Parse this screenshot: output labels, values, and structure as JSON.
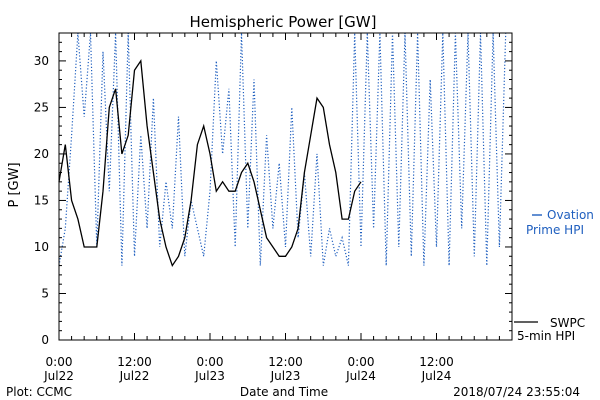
{
  "chart_data": {
    "type": "line",
    "title": "Hemispheric Power [GW]",
    "xlabel": "Date and Time",
    "ylabel": "P [GW]",
    "ylim": [
      0,
      33
    ],
    "yticks": [
      0,
      5,
      10,
      15,
      20,
      25,
      30
    ],
    "xlim": [
      "2018-07-22 00:00",
      "2018-07-25 00:00"
    ],
    "xticks": [
      {
        "t": "2018-07-22 00:00",
        "line1": "0:00",
        "line2": "Jul22"
      },
      {
        "t": "2018-07-22 12:00",
        "line1": "12:00",
        "line2": "Jul22"
      },
      {
        "t": "2018-07-23 00:00",
        "line1": "0:00",
        "line2": "Jul23"
      },
      {
        "t": "2018-07-23 12:00",
        "line1": "12:00",
        "line2": "Jul23"
      },
      {
        "t": "2018-07-24 00:00",
        "line1": "0:00",
        "line2": "Jul24"
      },
      {
        "t": "2018-07-24 12:00",
        "line1": "12:00",
        "line2": "Jul24"
      }
    ],
    "series": [
      {
        "name": "Ovation Prime HPI",
        "style": "dotted",
        "color": "#1f5fbf",
        "x": [
          "2018-07-22 00:00",
          "2018-07-22 01:00",
          "2018-07-22 02:00",
          "2018-07-22 03:00",
          "2018-07-22 04:00",
          "2018-07-22 05:00",
          "2018-07-22 06:00",
          "2018-07-22 07:00",
          "2018-07-22 08:00",
          "2018-07-22 09:00",
          "2018-07-22 10:00",
          "2018-07-22 11:00",
          "2018-07-22 12:00",
          "2018-07-22 13:00",
          "2018-07-22 14:00",
          "2018-07-22 15:00",
          "2018-07-22 16:00",
          "2018-07-22 17:00",
          "2018-07-22 18:00",
          "2018-07-22 19:00",
          "2018-07-22 20:00",
          "2018-07-22 21:00",
          "2018-07-22 22:00",
          "2018-07-22 23:00",
          "2018-07-23 00:00",
          "2018-07-23 01:00",
          "2018-07-23 02:00",
          "2018-07-23 03:00",
          "2018-07-23 04:00",
          "2018-07-23 05:00",
          "2018-07-23 06:00",
          "2018-07-23 07:00",
          "2018-07-23 08:00",
          "2018-07-23 09:00",
          "2018-07-23 10:00",
          "2018-07-23 11:00",
          "2018-07-23 12:00",
          "2018-07-23 13:00",
          "2018-07-23 14:00",
          "2018-07-23 15:00",
          "2018-07-23 16:00",
          "2018-07-23 17:00",
          "2018-07-23 18:00",
          "2018-07-23 19:00",
          "2018-07-23 20:00",
          "2018-07-23 21:00",
          "2018-07-23 22:00",
          "2018-07-23 23:00",
          "2018-07-24 00:00",
          "2018-07-24 01:00",
          "2018-07-24 02:00",
          "2018-07-24 03:00",
          "2018-07-24 04:00",
          "2018-07-24 05:00",
          "2018-07-24 06:00",
          "2018-07-24 07:00",
          "2018-07-24 08:00",
          "2018-07-24 09:00",
          "2018-07-24 10:00",
          "2018-07-24 11:00",
          "2018-07-24 12:00",
          "2018-07-24 13:00",
          "2018-07-24 14:00",
          "2018-07-24 15:00",
          "2018-07-24 16:00",
          "2018-07-24 17:00",
          "2018-07-24 18:00",
          "2018-07-24 19:00",
          "2018-07-24 20:00",
          "2018-07-24 21:00",
          "2018-07-24 22:00",
          "2018-07-24 23:00"
        ],
        "values": [
          8,
          12,
          22,
          33,
          24,
          33,
          10,
          31,
          16,
          33,
          8,
          33,
          9,
          22,
          12,
          26,
          10,
          17,
          12,
          24,
          9,
          15,
          12,
          9,
          16,
          30,
          20,
          27,
          10,
          33,
          12,
          28,
          8,
          22,
          12,
          19,
          10,
          25,
          11,
          18,
          9,
          20,
          8,
          12,
          9,
          11,
          8,
          33,
          10,
          33,
          12,
          33,
          8,
          33,
          10,
          33,
          9,
          33,
          8,
          28,
          10,
          33,
          8,
          33,
          12,
          33,
          9,
          33,
          8,
          33,
          10,
          33
        ]
      },
      {
        "name": "SWPC 5-min HPI",
        "style": "solid",
        "color": "#000000",
        "x": [
          "2018-07-22 00:00",
          "2018-07-22 01:00",
          "2018-07-22 02:00",
          "2018-07-22 03:00",
          "2018-07-22 04:00",
          "2018-07-22 05:00",
          "2018-07-22 06:00",
          "2018-07-22 07:00",
          "2018-07-22 08:00",
          "2018-07-22 09:00",
          "2018-07-22 10:00",
          "2018-07-22 11:00",
          "2018-07-22 12:00",
          "2018-07-22 13:00",
          "2018-07-22 14:00",
          "2018-07-22 15:00",
          "2018-07-22 16:00",
          "2018-07-22 17:00",
          "2018-07-22 18:00",
          "2018-07-22 19:00",
          "2018-07-22 20:00",
          "2018-07-22 21:00",
          "2018-07-22 22:00",
          "2018-07-22 23:00",
          "2018-07-23 00:00",
          "2018-07-23 01:00",
          "2018-07-23 02:00",
          "2018-07-23 03:00",
          "2018-07-23 04:00",
          "2018-07-23 05:00",
          "2018-07-23 06:00",
          "2018-07-23 07:00",
          "2018-07-23 08:00",
          "2018-07-23 09:00",
          "2018-07-23 10:00",
          "2018-07-23 11:00",
          "2018-07-23 12:00",
          "2018-07-23 13:00",
          "2018-07-23 14:00",
          "2018-07-23 15:00",
          "2018-07-23 16:00",
          "2018-07-23 17:00",
          "2018-07-23 18:00",
          "2018-07-23 19:00",
          "2018-07-23 20:00",
          "2018-07-23 21:00",
          "2018-07-23 22:00",
          "2018-07-23 23:00",
          "2018-07-24 00:00"
        ],
        "values": [
          17,
          21,
          15,
          13,
          10,
          10,
          10,
          16,
          25,
          27,
          20,
          22,
          29,
          30,
          23,
          18,
          13,
          10,
          8,
          9,
          11,
          15,
          21,
          23,
          20,
          16,
          17,
          16,
          16,
          18,
          19,
          17,
          14,
          11,
          10,
          9,
          9,
          10,
          12,
          18,
          22,
          26,
          25,
          21,
          18,
          13,
          13,
          16,
          17
        ]
      }
    ]
  },
  "footer": {
    "left": "Plot: CCMC",
    "center": "Date and Time",
    "right": "2018/07/24 23:55:04"
  }
}
